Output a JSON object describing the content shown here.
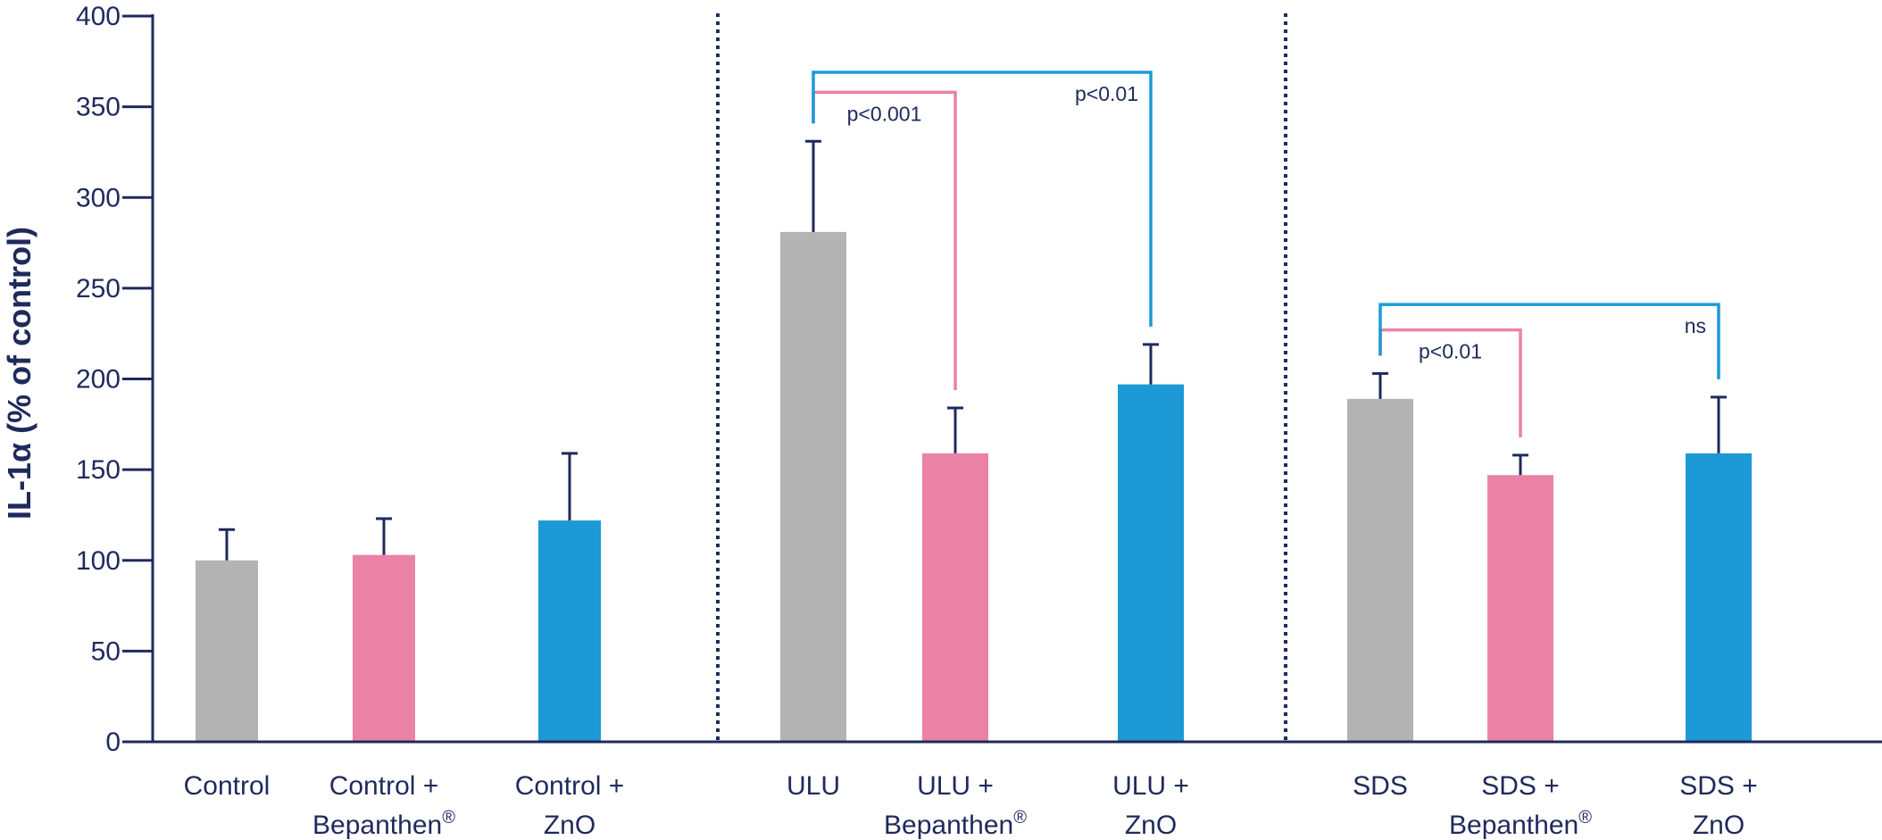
{
  "chart_data": {
    "type": "bar",
    "ylabel": "IL-1α (% of control)",
    "ylim": [
      0,
      400
    ],
    "yticks": [
      0,
      50,
      100,
      150,
      200,
      250,
      300,
      350,
      400
    ],
    "grid": false,
    "legend": "none",
    "groups": [
      {
        "bars": [
          {
            "label_lines": [
              "Control"
            ],
            "value": 100,
            "error": 17,
            "color": "#b3b3b4"
          },
          {
            "label_lines": [
              "Control +",
              "Bepanthen®"
            ],
            "value": 103,
            "error": 20,
            "color": "#ea82a5"
          },
          {
            "label_lines": [
              "Control +",
              "ZnO"
            ],
            "value": 122,
            "error": 37,
            "color": "#1d9ad6"
          }
        ]
      },
      {
        "bars": [
          {
            "label_lines": [
              "ULU"
            ],
            "value": 281,
            "error": 50,
            "color": "#b3b3b4"
          },
          {
            "label_lines": [
              "ULU +",
              "Bepanthen®"
            ],
            "value": 159,
            "error": 25,
            "color": "#ea82a5"
          },
          {
            "label_lines": [
              "ULU +",
              "ZnO"
            ],
            "value": 197,
            "error": 22,
            "color": "#1d9ad6"
          }
        ]
      },
      {
        "bars": [
          {
            "label_lines": [
              "SDS"
            ],
            "value": 189,
            "error": 14,
            "color": "#b3b3b4"
          },
          {
            "label_lines": [
              "SDS +",
              "Bepanthen®"
            ],
            "value": 147,
            "error": 11,
            "color": "#ea82a5"
          },
          {
            "label_lines": [
              "SDS +",
              "ZnO"
            ],
            "value": 159,
            "error": 31,
            "color": "#1d9ad6"
          }
        ]
      }
    ],
    "comparisons": [
      {
        "group": 1,
        "from": 0,
        "to": 1,
        "label": "p<0.001",
        "bracket_y": 358,
        "color": "#ea82a5"
      },
      {
        "group": 1,
        "from": 0,
        "to": 2,
        "label": "p<0.01",
        "bracket_y": 369,
        "color": "#1d9ad6"
      },
      {
        "group": 2,
        "from": 0,
        "to": 1,
        "label": "p<0.01",
        "bracket_y": 227,
        "color": "#ea82a5"
      },
      {
        "group": 2,
        "from": 0,
        "to": 2,
        "label": "ns",
        "bracket_y": 241,
        "color": "#1d9ad6"
      }
    ],
    "axis_color": "#1f2a5c",
    "divider_color": "#1f2a5c"
  }
}
